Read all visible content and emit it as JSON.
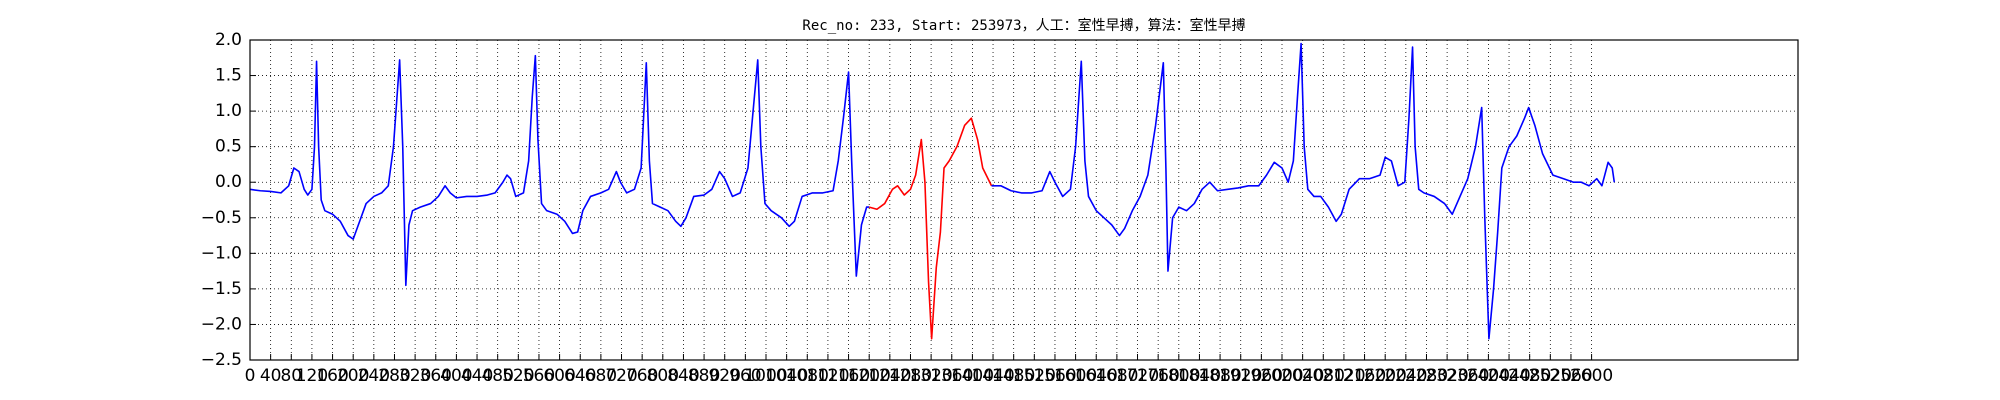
{
  "chart_data": {
    "type": "line",
    "title": "Rec_no: 233, Start: 253973，人工：室性早搏，算法：室性早搏",
    "xlim": [
      0,
      3000
    ],
    "ylim": [
      -2.5,
      2.0
    ],
    "xticks": [
      0,
      40,
      80,
      120,
      160,
      200,
      240,
      280,
      320,
      360,
      400,
      440,
      480,
      520,
      560,
      600,
      640,
      680,
      720,
      760,
      800,
      840,
      880,
      920,
      960,
      1000,
      1040,
      1080,
      1120,
      1160,
      1200,
      1240,
      1280,
      1320,
      1360,
      1400,
      1440,
      1480,
      1520,
      1560,
      1600,
      1640,
      1680,
      1720,
      1760,
      1800,
      1840,
      1880,
      1920,
      1960,
      2000,
      2040,
      2080,
      2120,
      2160,
      2200,
      2240,
      2280,
      2320,
      2360,
      2400,
      2440,
      2480,
      2520,
      2560,
      2600
    ],
    "yticks": [
      {
        "value": -2.5,
        "label": "−2.5"
      },
      {
        "value": -2.0,
        "label": "−2.0"
      },
      {
        "value": -1.5,
        "label": "−1.5"
      },
      {
        "value": -1.0,
        "label": "−1.0"
      },
      {
        "value": -0.5,
        "label": "−0.5"
      },
      {
        "value": 0,
        "label": "0.0"
      },
      {
        "value": 0.5,
        "label": "0.5"
      },
      {
        "value": 1.0,
        "label": "1.0"
      },
      {
        "value": 1.5,
        "label": "1.5"
      },
      {
        "value": 2.0,
        "label": "2.0"
      }
    ],
    "grid": true,
    "series": [
      {
        "color": "#0000ff",
        "x": [
          0,
          20,
          40,
          60,
          75,
          85,
          95,
          105,
          112,
          120,
          125,
          129,
          133,
          138,
          145,
          160,
          175,
          190,
          200,
          210,
          225,
          240,
          255,
          268,
          278,
          290,
          296,
          302,
          308,
          315,
          330,
          350,
          365,
          378,
          388,
          400,
          420,
          440,
          460,
          475,
          490,
          498,
          505,
          515,
          530,
          540,
          547,
          553,
          558,
          565,
          575,
          595,
          610,
          625,
          635,
          645,
          660,
          680,
          695,
          710,
          718,
          730,
          745,
          758,
          768,
          774,
          780,
          795,
          810,
          825,
          835,
          845,
          860,
          880,
          895,
          910,
          920,
          935,
          950,
          965,
          975,
          984,
          990,
          998,
          1010,
          1030,
          1045,
          1055,
          1070,
          1090,
          1110,
          1130,
          1140,
          1150,
          1160,
          1166,
          1175,
          1185,
          1195,
          1200
        ],
        "values": [
          -0.1,
          -0.12,
          -0.13,
          -0.15,
          -0.05,
          0.2,
          0.15,
          -0.1,
          -0.18,
          -0.1,
          0.5,
          1.7,
          0.5,
          -0.25,
          -0.4,
          -0.45,
          -0.55,
          -0.75,
          -0.8,
          -0.6,
          -0.3,
          -0.2,
          -0.15,
          -0.05,
          0.5,
          1.72,
          0.5,
          -1.45,
          -0.6,
          -0.4,
          -0.35,
          -0.3,
          -0.2,
          -0.05,
          -0.15,
          -0.22,
          -0.2,
          -0.2,
          -0.18,
          -0.15,
          0.0,
          0.1,
          0.05,
          -0.2,
          -0.15,
          0.3,
          1.2,
          1.78,
          0.6,
          -0.3,
          -0.4,
          -0.45,
          -0.55,
          -0.72,
          -0.7,
          -0.4,
          -0.2,
          -0.15,
          -0.1,
          0.15,
          0.0,
          -0.15,
          -0.1,
          0.2,
          1.68,
          0.3,
          -0.3,
          -0.35,
          -0.4,
          -0.55,
          -0.62,
          -0.5,
          -0.2,
          -0.18,
          -0.1,
          0.15,
          0.05,
          -0.2,
          -0.15,
          0.2,
          1.0,
          1.72,
          0.5,
          -0.3,
          -0.4,
          -0.5,
          -0.62,
          -0.55,
          -0.2,
          -0.15,
          -0.15,
          -0.12,
          0.3,
          0.9,
          1.55,
          0.3,
          -1.32,
          -0.6,
          -0.35,
          -0.35
        ]
      },
      {
        "color": "#ff0000",
        "x": [
          1200,
          1215,
          1230,
          1245,
          1255,
          1268,
          1280,
          1290,
          1301,
          1308,
          1315,
          1321,
          1330,
          1338,
          1345,
          1355,
          1370,
          1385,
          1398,
          1410,
          1420,
          1437
        ],
        "values": [
          -0.35,
          -0.38,
          -0.3,
          -0.1,
          -0.05,
          -0.18,
          -0.1,
          0.1,
          0.6,
          0.0,
          -1.4,
          -2.2,
          -1.2,
          -0.7,
          0.2,
          0.3,
          0.5,
          0.8,
          0.9,
          0.6,
          0.2,
          -0.05
        ]
      },
      {
        "color": "#0000ff",
        "x": [
          1437,
          1455,
          1475,
          1495,
          1515,
          1535,
          1550,
          1560,
          1575,
          1590,
          1600,
          1611,
          1618,
          1625,
          1640,
          1655,
          1670,
          1685,
          1695,
          1710,
          1725,
          1740,
          1755,
          1770,
          1775,
          1779,
          1788,
          1800,
          1815,
          1830,
          1845,
          1860,
          1875,
          1895,
          1915,
          1935,
          1955,
          1970,
          1985,
          2000,
          2012,
          2022,
          2030,
          2037,
          2043,
          2050,
          2062,
          2075,
          2090,
          2105,
          2115,
          2130,
          2150,
          2170,
          2190,
          2200,
          2212,
          2225,
          2238,
          2246,
          2253,
          2258,
          2265,
          2275,
          2295,
          2315,
          2330,
          2345,
          2360,
          2375,
          2387,
          2393,
          2401,
          2410,
          2418,
          2426,
          2440,
          2455,
          2470,
          2478,
          2490,
          2505,
          2525,
          2545,
          2565,
          2580,
          2595,
          2610,
          2620,
          2632,
          2640,
          2644
        ],
        "values": [
          -0.05,
          -0.05,
          -0.12,
          -0.15,
          -0.15,
          -0.12,
          0.15,
          0.0,
          -0.2,
          -0.1,
          0.5,
          1.7,
          0.3,
          -0.2,
          -0.4,
          -0.5,
          -0.6,
          -0.75,
          -0.65,
          -0.4,
          -0.2,
          0.1,
          0.8,
          1.68,
          0.2,
          -1.25,
          -0.5,
          -0.35,
          -0.4,
          -0.3,
          -0.1,
          0.0,
          -0.12,
          -0.1,
          -0.08,
          -0.05,
          -0.05,
          0.1,
          0.28,
          0.2,
          0.0,
          0.3,
          1.2,
          1.95,
          0.5,
          -0.1,
          -0.2,
          -0.2,
          -0.35,
          -0.55,
          -0.45,
          -0.1,
          0.05,
          0.05,
          0.1,
          0.35,
          0.3,
          -0.05,
          0.0,
          0.9,
          1.9,
          0.5,
          -0.1,
          -0.15,
          -0.2,
          -0.3,
          -0.45,
          -0.2,
          0.05,
          0.5,
          1.05,
          -0.5,
          -2.2,
          -1.5,
          -0.7,
          0.2,
          0.5,
          0.65,
          0.9,
          1.05,
          0.8,
          0.4,
          0.1,
          0.05,
          0.0,
          0.0,
          -0.05,
          0.05,
          -0.05,
          0.28,
          0.2,
          0.0
        ]
      }
    ]
  }
}
